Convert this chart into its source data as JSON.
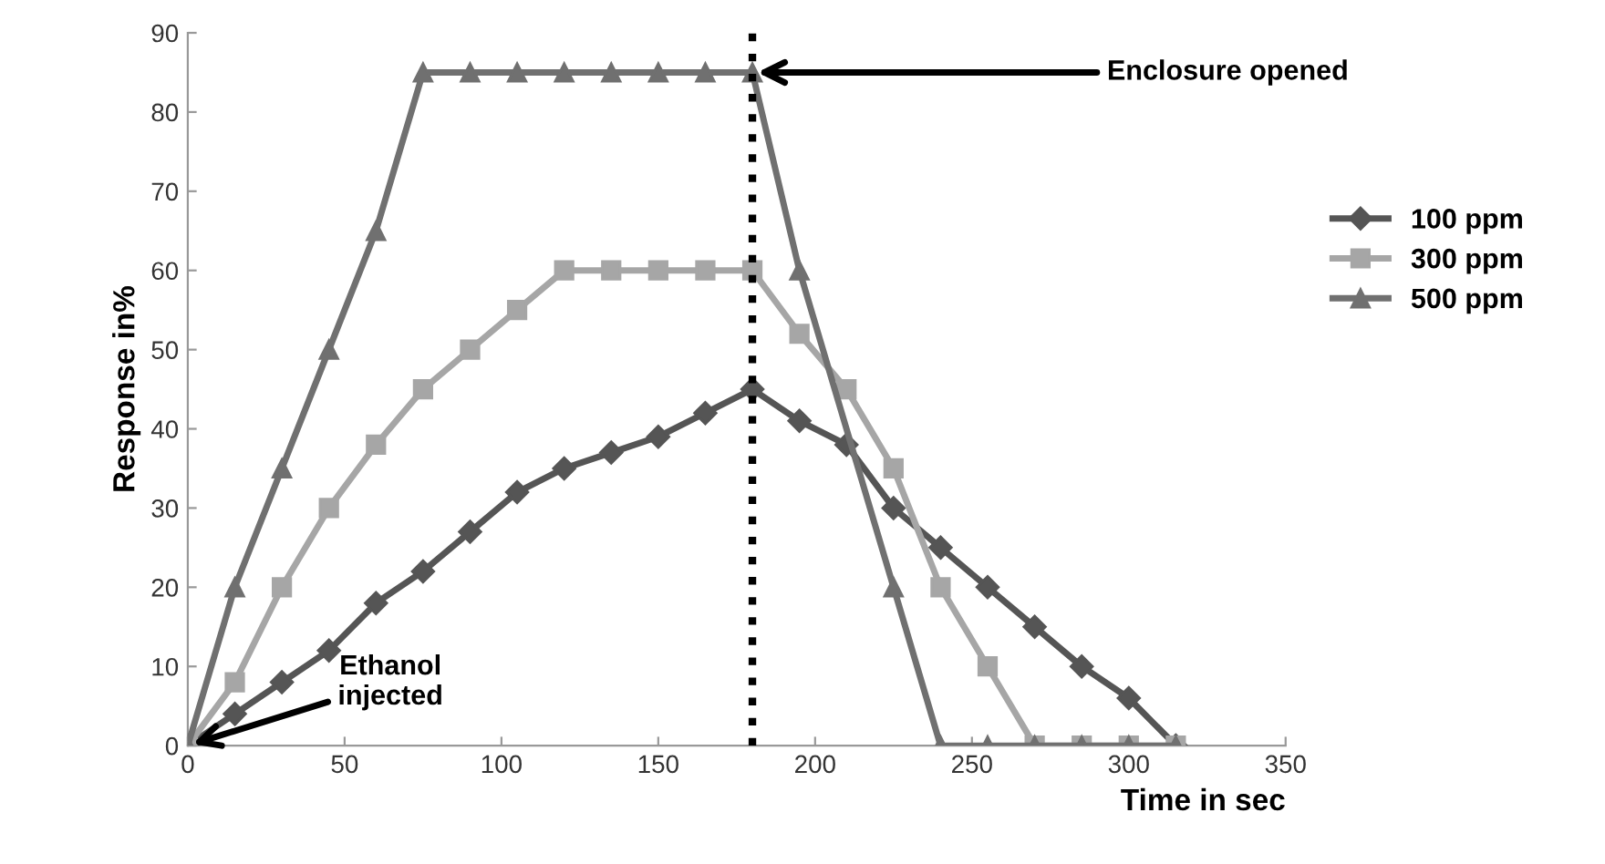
{
  "chart_data": {
    "type": "line",
    "xlabel": "Time in sec",
    "ylabel": "Response in%",
    "x": [
      0,
      15,
      30,
      45,
      60,
      75,
      90,
      105,
      120,
      135,
      150,
      165,
      180,
      195,
      210,
      225,
      240,
      255,
      270,
      285,
      300,
      315
    ],
    "series": [
      {
        "name": "100 ppm",
        "color": "#555555",
        "marker": "diamond",
        "values": [
          0,
          4,
          8,
          12,
          18,
          22,
          27,
          32,
          35,
          37,
          39,
          42,
          45,
          41,
          38,
          30,
          25,
          20,
          15,
          10,
          6,
          0
        ]
      },
      {
        "name": "300 ppm",
        "color": "#a6a6a6",
        "marker": "square",
        "values": [
          0,
          8,
          20,
          30,
          38,
          45,
          50,
          55,
          60,
          60,
          60,
          60,
          60,
          52,
          45,
          35,
          20,
          10,
          0,
          0,
          0,
          0
        ]
      },
      {
        "name": "500 ppm",
        "color": "#707070",
        "marker": "triangle",
        "values": [
          0,
          20,
          35,
          50,
          65,
          85,
          85,
          85,
          85,
          85,
          85,
          85,
          85,
          60,
          null,
          20,
          0,
          0,
          0,
          0,
          0,
          0
        ]
      }
    ],
    "xlim": [
      0,
      350
    ],
    "xticks": [
      0,
      50,
      100,
      150,
      200,
      250,
      300,
      350
    ],
    "ylim": [
      0,
      90
    ],
    "yticks": [
      0,
      10,
      20,
      30,
      40,
      50,
      60,
      70,
      80,
      90
    ],
    "ref_lines": [
      {
        "axis": "x",
        "value": 180,
        "color": "#000000",
        "line_style": "dotted"
      }
    ],
    "annotations": [
      {
        "text": "Enclosure opened",
        "x": 180,
        "y": 85
      },
      {
        "text": "Ethanol\ninjected",
        "x": 0,
        "y": 0
      }
    ],
    "legend": "right",
    "grid": false
  }
}
